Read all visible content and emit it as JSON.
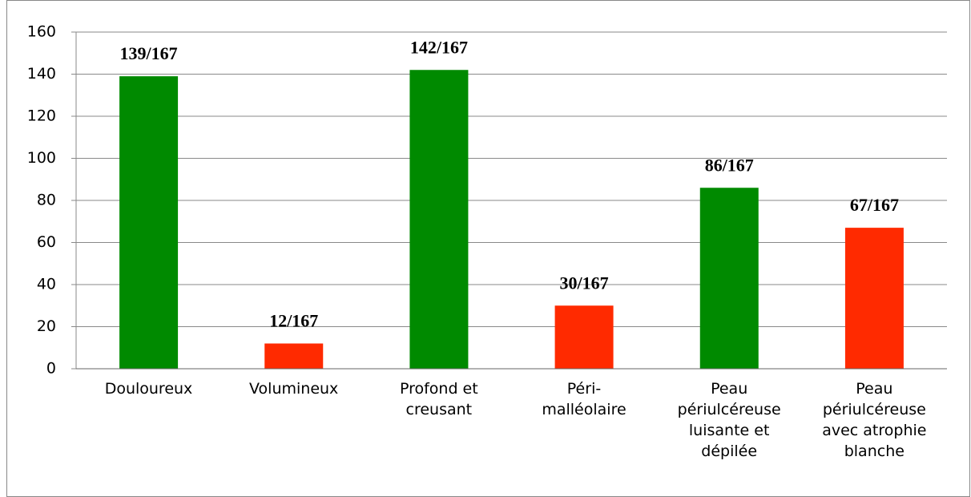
{
  "chart_data": {
    "type": "bar",
    "categories": [
      "Douloureux",
      "Volumineux",
      "Profond et\ncreusant",
      "Péri-\nmalléolaire",
      "Peau\npériulcéreuse\nluisante et\ndépilée",
      "Peau\npériulcéreuse\navec atrophie\nblanche"
    ],
    "values": [
      139,
      12,
      142,
      30,
      86,
      67
    ],
    "value_labels": [
      "139/167",
      "12/167",
      "142/167",
      "30/167",
      "86/167",
      "67/167"
    ],
    "colors": [
      "#008a00",
      "#ff2a00",
      "#008a00",
      "#ff2a00",
      "#008a00",
      "#ff2a00"
    ],
    "ylim": [
      0,
      160
    ],
    "yticks": [
      0,
      20,
      40,
      60,
      80,
      100,
      120,
      140,
      160
    ],
    "grid": true
  }
}
